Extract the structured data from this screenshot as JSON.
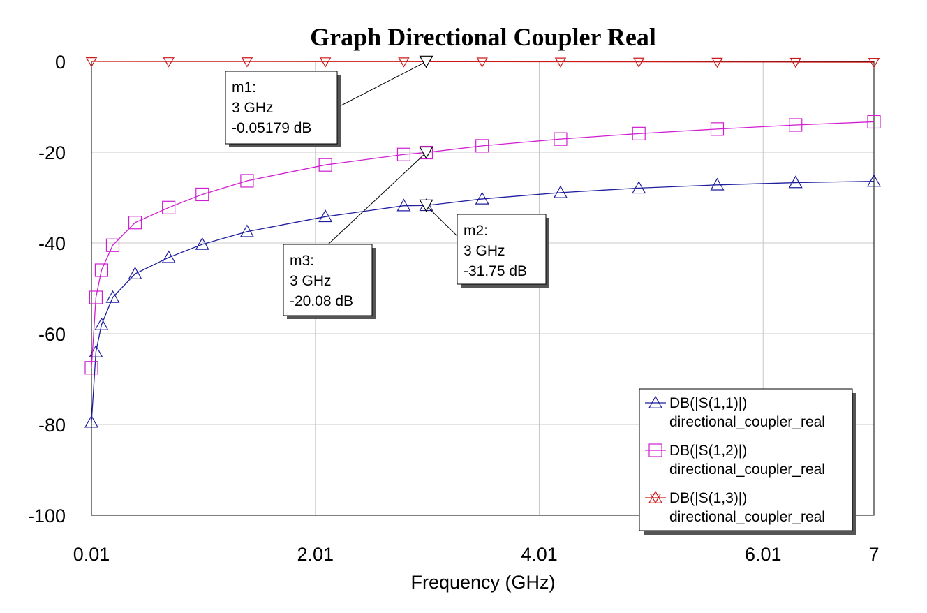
{
  "chart_data": {
    "type": "line",
    "title": "Graph Directional Coupler Real",
    "xlabel": "Frequency (GHz)",
    "ylabel": "",
    "xlim": [
      0.01,
      7
    ],
    "ylim": [
      -100,
      0
    ],
    "x_ticks": [
      0.01,
      2.01,
      4.01,
      6.01,
      7
    ],
    "x_tick_labels": [
      "0.01",
      "2.01",
      "4.01",
      "6.01",
      "7"
    ],
    "y_ticks": [
      0,
      -20,
      -40,
      -60,
      -80,
      -100
    ],
    "y_tick_labels": [
      "0",
      "-20",
      "-40",
      "-60",
      "-80",
      "-100"
    ],
    "grid": true,
    "legend_position": "bottom-right",
    "series": [
      {
        "name": "DB(|S(1,1)|)",
        "sub": "directional_coupler_real",
        "color": "#1f1f9f",
        "marker": "triangle",
        "x": [
          0.01,
          0.05,
          0.1,
          0.2,
          0.4,
          0.7,
          1.0,
          1.4,
          2.1,
          2.8,
          3.0,
          3.5,
          4.2,
          4.9,
          5.6,
          6.3,
          7.0
        ],
        "y": [
          -79.5,
          -64.0,
          -58.0,
          -52.0,
          -46.8,
          -43.2,
          -40.3,
          -37.5,
          -34.2,
          -31.8,
          -31.75,
          -30.3,
          -28.9,
          -27.9,
          -27.2,
          -26.7,
          -26.4
        ]
      },
      {
        "name": "DB(|S(1,2)|)",
        "sub": "directional_coupler_real",
        "color": "#d01fd0",
        "marker": "square",
        "x": [
          0.01,
          0.05,
          0.1,
          0.2,
          0.4,
          0.7,
          1.0,
          1.4,
          2.1,
          2.8,
          3.0,
          3.5,
          4.2,
          4.9,
          5.6,
          6.3,
          7.0
        ],
        "y": [
          -67.5,
          -52.0,
          -46.0,
          -40.5,
          -35.5,
          -32.2,
          -29.3,
          -26.3,
          -22.8,
          -20.5,
          -20.08,
          -18.6,
          -17.1,
          -15.9,
          -14.9,
          -14.0,
          -13.3
        ]
      },
      {
        "name": "DB(|S(1,3)|)",
        "sub": "directional_coupler_real",
        "color": "#cc1a1a",
        "marker": "triangle-down",
        "x": [
          0.01,
          0.7,
          1.4,
          2.1,
          2.8,
          3.0,
          3.5,
          4.2,
          4.9,
          5.6,
          6.3,
          7.0
        ],
        "y": [
          0.0,
          -0.01,
          -0.02,
          -0.03,
          -0.04,
          -0.05179,
          -0.06,
          -0.08,
          -0.1,
          -0.12,
          -0.14,
          -0.16
        ]
      }
    ],
    "markers": [
      {
        "label": "m1:",
        "freq": "3 GHz",
        "value": "-0.05179 dB",
        "x": 3.0,
        "y": -0.05179
      },
      {
        "label": "m2:",
        "freq": "3 GHz",
        "value": "-31.75 dB",
        "x": 3.0,
        "y": -31.75
      },
      {
        "label": "m3:",
        "freq": "3 GHz",
        "value": "-20.08 dB",
        "x": 3.0,
        "y": -20.08
      }
    ]
  }
}
